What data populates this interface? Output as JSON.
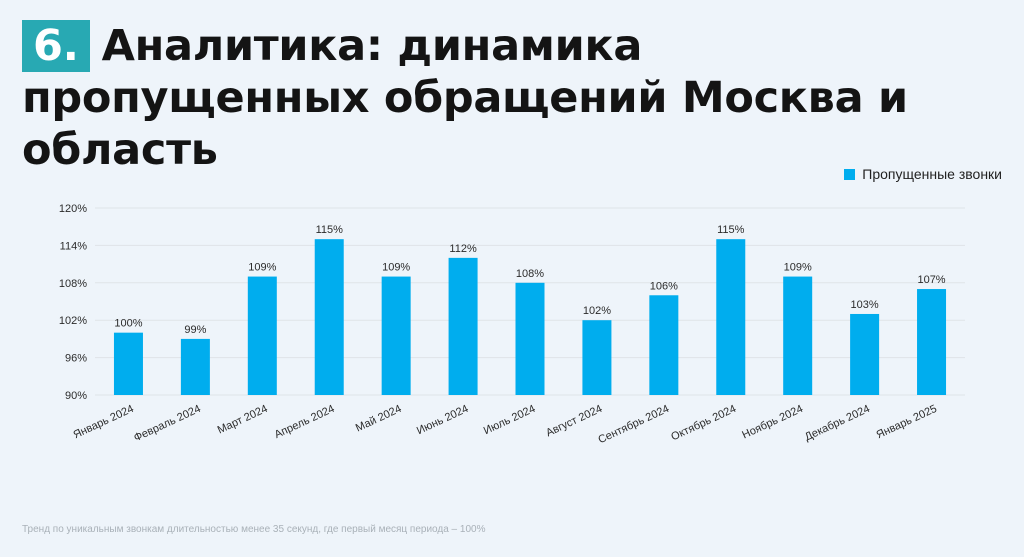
{
  "header": {
    "number": "6.",
    "title": "Аналитика: динамика пропущенных обращений Москва и область"
  },
  "footnote": "Тренд по  уникальным звонкам длительностью менее 35 секунд, где первый месяц периода – 100%",
  "colors": {
    "bar": "#00adee",
    "badge": "#28a9b3",
    "grid": "#dfe3e8",
    "background": "#eef4fa"
  },
  "chart_data": {
    "type": "bar",
    "categories": [
      "Январь 2024",
      "Февраль 2024",
      "Март 2024",
      "Апрель 2024",
      "Май 2024",
      "Июнь 2024",
      "Июль 2024",
      "Август 2024",
      "Сентябрь 2024",
      "Октябрь 2024",
      "Ноябрь 2024",
      "Декабрь 2024",
      "Январь 2025"
    ],
    "series": [
      {
        "name": "Пропущенные звонки",
        "values": [
          100,
          99,
          109,
          115,
          109,
          112,
          108,
          102,
          106,
          115,
          109,
          103,
          107
        ],
        "labels": [
          "100%",
          "99%",
          "109%",
          "115%",
          "109%",
          "112%",
          "108%",
          "102%",
          "106%",
          "115%",
          "109%",
          "103%",
          "107%"
        ]
      }
    ],
    "ylim": [
      90,
      120
    ],
    "yticks": [
      90,
      96,
      102,
      108,
      114,
      120
    ],
    "ytick_labels": [
      "90%",
      "96%",
      "102%",
      "108%",
      "114%",
      "120%"
    ],
    "grid": true,
    "legend_position": "top-right"
  }
}
